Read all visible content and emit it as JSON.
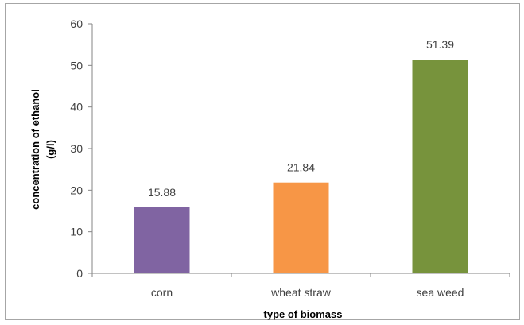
{
  "chart_data": {
    "type": "bar",
    "categories": [
      "corn",
      "wheat straw",
      "sea weed"
    ],
    "values": [
      15.88,
      21.84,
      51.39
    ],
    "data_labels": [
      "15.88",
      "21.84",
      "51.39"
    ],
    "colors": [
      "#8064a2",
      "#f79646",
      "#77933c"
    ],
    "title": "",
    "xlabel": "type of biomass",
    "ylabel_lines": [
      "concentration of ethanol",
      "(g/l)"
    ],
    "ylim": [
      0,
      60
    ],
    "yticks": [
      0,
      10,
      20,
      30,
      40,
      50,
      60
    ],
    "ytick_labels": [
      "0",
      "10",
      "20",
      "30",
      "40",
      "50",
      "60"
    ],
    "grid": false,
    "legend": "none"
  }
}
